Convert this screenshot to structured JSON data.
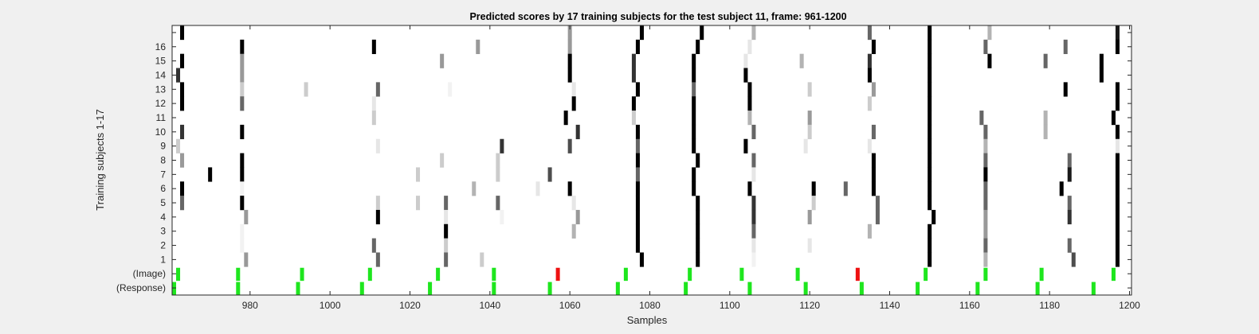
{
  "chart_data": {
    "type": "heatmap",
    "title": "Predicted scores by 17 training subjects for the test subject 11, frame: 961-1200",
    "xlabel": "Samples",
    "ylabel": "Training subjects 1-17",
    "xlim": [
      961,
      1200
    ],
    "xticks": [
      980,
      1000,
      1020,
      1040,
      1060,
      1080,
      1100,
      1120,
      1140,
      1160,
      1180,
      1200
    ],
    "row_labels": [
      "(Response)",
      "(Image)",
      "1",
      "2",
      "3",
      "4",
      "5",
      "6",
      "7",
      "8",
      "9",
      "10",
      "11",
      "12",
      "13",
      "14",
      "15",
      "16",
      ""
    ],
    "colormap": "gray (0 = white, 1 = black)",
    "grid": false,
    "legend": "none",
    "colors": {
      "correct": "#1ee61e",
      "incorrect": "#ee1111",
      "background": "#ffffff",
      "figure": "#f0f0f0"
    },
    "response_markers": [
      961,
      977,
      992,
      1008,
      1025,
      1041,
      1055,
      1072,
      1089,
      1105,
      1119,
      1133,
      1147,
      1162,
      1177,
      1191
    ],
    "image_markers": [
      {
        "x": 962,
        "status": "correct"
      },
      {
        "x": 977,
        "status": "correct"
      },
      {
        "x": 993,
        "status": "correct"
      },
      {
        "x": 1010,
        "status": "correct"
      },
      {
        "x": 1027,
        "status": "correct"
      },
      {
        "x": 1041,
        "status": "correct"
      },
      {
        "x": 1057,
        "status": "incorrect"
      },
      {
        "x": 1074,
        "status": "correct"
      },
      {
        "x": 1090,
        "status": "correct"
      },
      {
        "x": 1103,
        "status": "correct"
      },
      {
        "x": 1117,
        "status": "correct"
      },
      {
        "x": 1132,
        "status": "incorrect"
      },
      {
        "x": 1149,
        "status": "correct"
      },
      {
        "x": 1164,
        "status": "correct"
      },
      {
        "x": 1178,
        "status": "correct"
      },
      {
        "x": 1196,
        "status": "correct"
      }
    ],
    "subject_scores": [
      {
        "row": "17",
        "cells": [
          [
            963,
            1
          ],
          [
            1060,
            0.4
          ],
          [
            1078,
            1
          ],
          [
            1093,
            1
          ],
          [
            1106,
            0.3
          ],
          [
            1135,
            0.6
          ],
          [
            1150,
            1
          ],
          [
            1165,
            0.3
          ],
          [
            1197,
            0.9
          ]
        ]
      },
      {
        "row": "16",
        "cells": [
          [
            978,
            1
          ],
          [
            1011,
            1
          ],
          [
            1037,
            0.4
          ],
          [
            1060,
            0.4
          ],
          [
            1077,
            1
          ],
          [
            1092,
            1
          ],
          [
            1105,
            0.1
          ],
          [
            1136,
            1
          ],
          [
            1150,
            1
          ],
          [
            1164,
            0.6
          ],
          [
            1184,
            0.6
          ],
          [
            1197,
            1
          ]
        ]
      },
      {
        "row": "15",
        "cells": [
          [
            963,
            1
          ],
          [
            978,
            0.4
          ],
          [
            1028,
            0.4
          ],
          [
            1060,
            1
          ],
          [
            1076,
            0.8
          ],
          [
            1091,
            1
          ],
          [
            1104,
            0.1
          ],
          [
            1118,
            0.3
          ],
          [
            1135,
            0.8
          ],
          [
            1150,
            1
          ],
          [
            1165,
            1
          ],
          [
            1179,
            0.6
          ],
          [
            1193,
            1
          ]
        ]
      },
      {
        "row": "14",
        "cells": [
          [
            962,
            0.8
          ],
          [
            978,
            0.4
          ],
          [
            1060,
            1
          ],
          [
            1076,
            0.8
          ],
          [
            1091,
            1
          ],
          [
            1104,
            1
          ],
          [
            1135,
            1
          ],
          [
            1150,
            1
          ],
          [
            1193,
            1
          ]
        ]
      },
      {
        "row": "13",
        "cells": [
          [
            963,
            1
          ],
          [
            978,
            0.2
          ],
          [
            994,
            0.2
          ],
          [
            1012,
            0.6
          ],
          [
            1030,
            0.05
          ],
          [
            1061,
            0.1
          ],
          [
            1077,
            1
          ],
          [
            1091,
            0.6
          ],
          [
            1105,
            1
          ],
          [
            1120,
            0.2
          ],
          [
            1136,
            0.4
          ],
          [
            1150,
            1
          ],
          [
            1184,
            1
          ],
          [
            1197,
            1
          ]
        ]
      },
      {
        "row": "12",
        "cells": [
          [
            963,
            1
          ],
          [
            978,
            0.6
          ],
          [
            1011,
            0.1
          ],
          [
            1061,
            1
          ],
          [
            1076,
            1
          ],
          [
            1091,
            1
          ],
          [
            1105,
            1
          ],
          [
            1135,
            0.2
          ],
          [
            1150,
            1
          ],
          [
            1197,
            1
          ]
        ]
      },
      {
        "row": "11",
        "cells": [
          [
            1011,
            0.2
          ],
          [
            1059,
            1
          ],
          [
            1076,
            0.2
          ],
          [
            1091,
            1
          ],
          [
            1105,
            0.3
          ],
          [
            1120,
            0.4
          ],
          [
            1150,
            1
          ],
          [
            1163,
            0.6
          ],
          [
            1179,
            0.3
          ],
          [
            1196,
            1
          ]
        ]
      },
      {
        "row": "10",
        "cells": [
          [
            963,
            0.8
          ],
          [
            978,
            1
          ],
          [
            1062,
            0.8
          ],
          [
            1077,
            1
          ],
          [
            1091,
            1
          ],
          [
            1106,
            0.6
          ],
          [
            1120,
            0.2
          ],
          [
            1136,
            0.6
          ],
          [
            1150,
            1
          ],
          [
            1164,
            0.6
          ],
          [
            1179,
            0.3
          ],
          [
            1197,
            1
          ]
        ]
      },
      {
        "row": "9",
        "cells": [
          [
            962,
            0.2
          ],
          [
            1012,
            0.1
          ],
          [
            1043,
            0.8
          ],
          [
            1060,
            0.7
          ],
          [
            1077,
            0.6
          ],
          [
            1091,
            1
          ],
          [
            1104,
            1
          ],
          [
            1119,
            0.1
          ],
          [
            1135,
            0.1
          ],
          [
            1150,
            1
          ],
          [
            1164,
            0.3
          ],
          [
            1197,
            0.1
          ]
        ]
      },
      {
        "row": "8",
        "cells": [
          [
            963,
            0.4
          ],
          [
            978,
            1
          ],
          [
            1028,
            0.2
          ],
          [
            1042,
            0.2
          ],
          [
            1077,
            1
          ],
          [
            1092,
            1
          ],
          [
            1106,
            0.6
          ],
          [
            1136,
            1
          ],
          [
            1150,
            1
          ],
          [
            1164,
            0.6
          ],
          [
            1185,
            0.6
          ],
          [
            1197,
            1
          ]
        ]
      },
      {
        "row": "7",
        "cells": [
          [
            970,
            1
          ],
          [
            978,
            1
          ],
          [
            1022,
            0.2
          ],
          [
            1042,
            0.2
          ],
          [
            1055,
            0.7
          ],
          [
            1077,
            0.6
          ],
          [
            1091,
            1
          ],
          [
            1106,
            0.1
          ],
          [
            1136,
            1
          ],
          [
            1150,
            1
          ],
          [
            1164,
            1
          ],
          [
            1185,
            0.9
          ],
          [
            1197,
            1
          ]
        ]
      },
      {
        "row": "6",
        "cells": [
          [
            963,
            1
          ],
          [
            978,
            0.05
          ],
          [
            1036,
            0.3
          ],
          [
            1052,
            0.1
          ],
          [
            1060,
            1
          ],
          [
            1077,
            1
          ],
          [
            1091,
            1
          ],
          [
            1105,
            1
          ],
          [
            1121,
            1
          ],
          [
            1129,
            0.6
          ],
          [
            1136,
            1
          ],
          [
            1150,
            1
          ],
          [
            1164,
            0.6
          ],
          [
            1183,
            1
          ],
          [
            1197,
            1
          ]
        ]
      },
      {
        "row": "5",
        "cells": [
          [
            963,
            0.6
          ],
          [
            978,
            1
          ],
          [
            1012,
            0.2
          ],
          [
            1022,
            0.2
          ],
          [
            1029,
            0.6
          ],
          [
            1042,
            0.6
          ],
          [
            1061,
            0.1
          ],
          [
            1077,
            1
          ],
          [
            1092,
            1
          ],
          [
            1106,
            0.8
          ],
          [
            1121,
            0.2
          ],
          [
            1137,
            0.6
          ],
          [
            1150,
            1
          ],
          [
            1164,
            0.6
          ],
          [
            1185,
            0.6
          ],
          [
            1197,
            1
          ]
        ]
      },
      {
        "row": "4",
        "cells": [
          [
            979,
            0.4
          ],
          [
            1012,
            1
          ],
          [
            1029,
            0.1
          ],
          [
            1043,
            0.05
          ],
          [
            1062,
            0.4
          ],
          [
            1077,
            1
          ],
          [
            1092,
            1
          ],
          [
            1106,
            0.8
          ],
          [
            1120,
            0.4
          ],
          [
            1137,
            0.6
          ],
          [
            1151,
            1
          ],
          [
            1164,
            0.4
          ],
          [
            1185,
            0.8
          ],
          [
            1197,
            1
          ]
        ]
      },
      {
        "row": "3",
        "cells": [
          [
            978,
            0.05
          ],
          [
            1029,
            1
          ],
          [
            1061,
            0.3
          ],
          [
            1077,
            1
          ],
          [
            1092,
            1
          ],
          [
            1106,
            0.6
          ],
          [
            1135,
            0.3
          ],
          [
            1150,
            1
          ],
          [
            1164,
            0.4
          ],
          [
            1197,
            1
          ]
        ]
      },
      {
        "row": "2",
        "cells": [
          [
            978,
            0.05
          ],
          [
            1011,
            0.6
          ],
          [
            1029,
            0.2
          ],
          [
            1077,
            1
          ],
          [
            1092,
            1
          ],
          [
            1106,
            0.1
          ],
          [
            1120,
            0.1
          ],
          [
            1150,
            1
          ],
          [
            1164,
            0.6
          ],
          [
            1185,
            0.6
          ],
          [
            1197,
            1
          ]
        ]
      },
      {
        "row": "1",
        "cells": [
          [
            979,
            0.4
          ],
          [
            1012,
            0.6
          ],
          [
            1029,
            0.6
          ],
          [
            1038,
            0.2
          ],
          [
            1078,
            1
          ],
          [
            1092,
            1
          ],
          [
            1106,
            0.05
          ],
          [
            1150,
            1
          ],
          [
            1164,
            0.3
          ],
          [
            1186,
            0.7
          ],
          [
            1197,
            1
          ]
        ]
      }
    ]
  }
}
